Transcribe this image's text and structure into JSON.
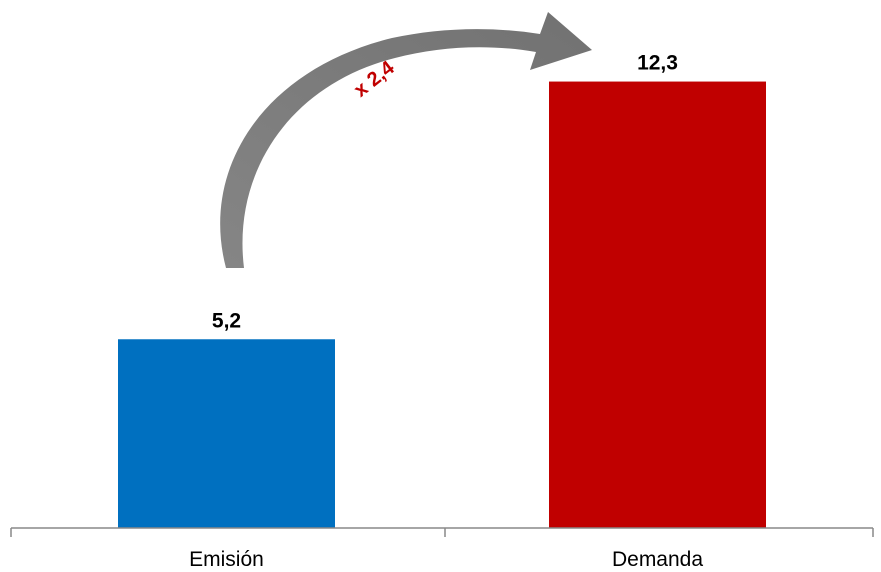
{
  "chart_data": {
    "type": "bar",
    "categories": [
      "Emisión",
      "Demanda"
    ],
    "values": [
      5.2,
      12.3
    ],
    "value_labels": [
      "5,2",
      "12,3"
    ],
    "colors": [
      "#0070C0",
      "#C00000"
    ],
    "annotation": {
      "text": "x 2,4",
      "color": "#C00000"
    },
    "ylim": [
      0,
      13.5
    ],
    "grid": false,
    "legend": "none",
    "title": "",
    "xlabel": "",
    "ylabel": ""
  }
}
